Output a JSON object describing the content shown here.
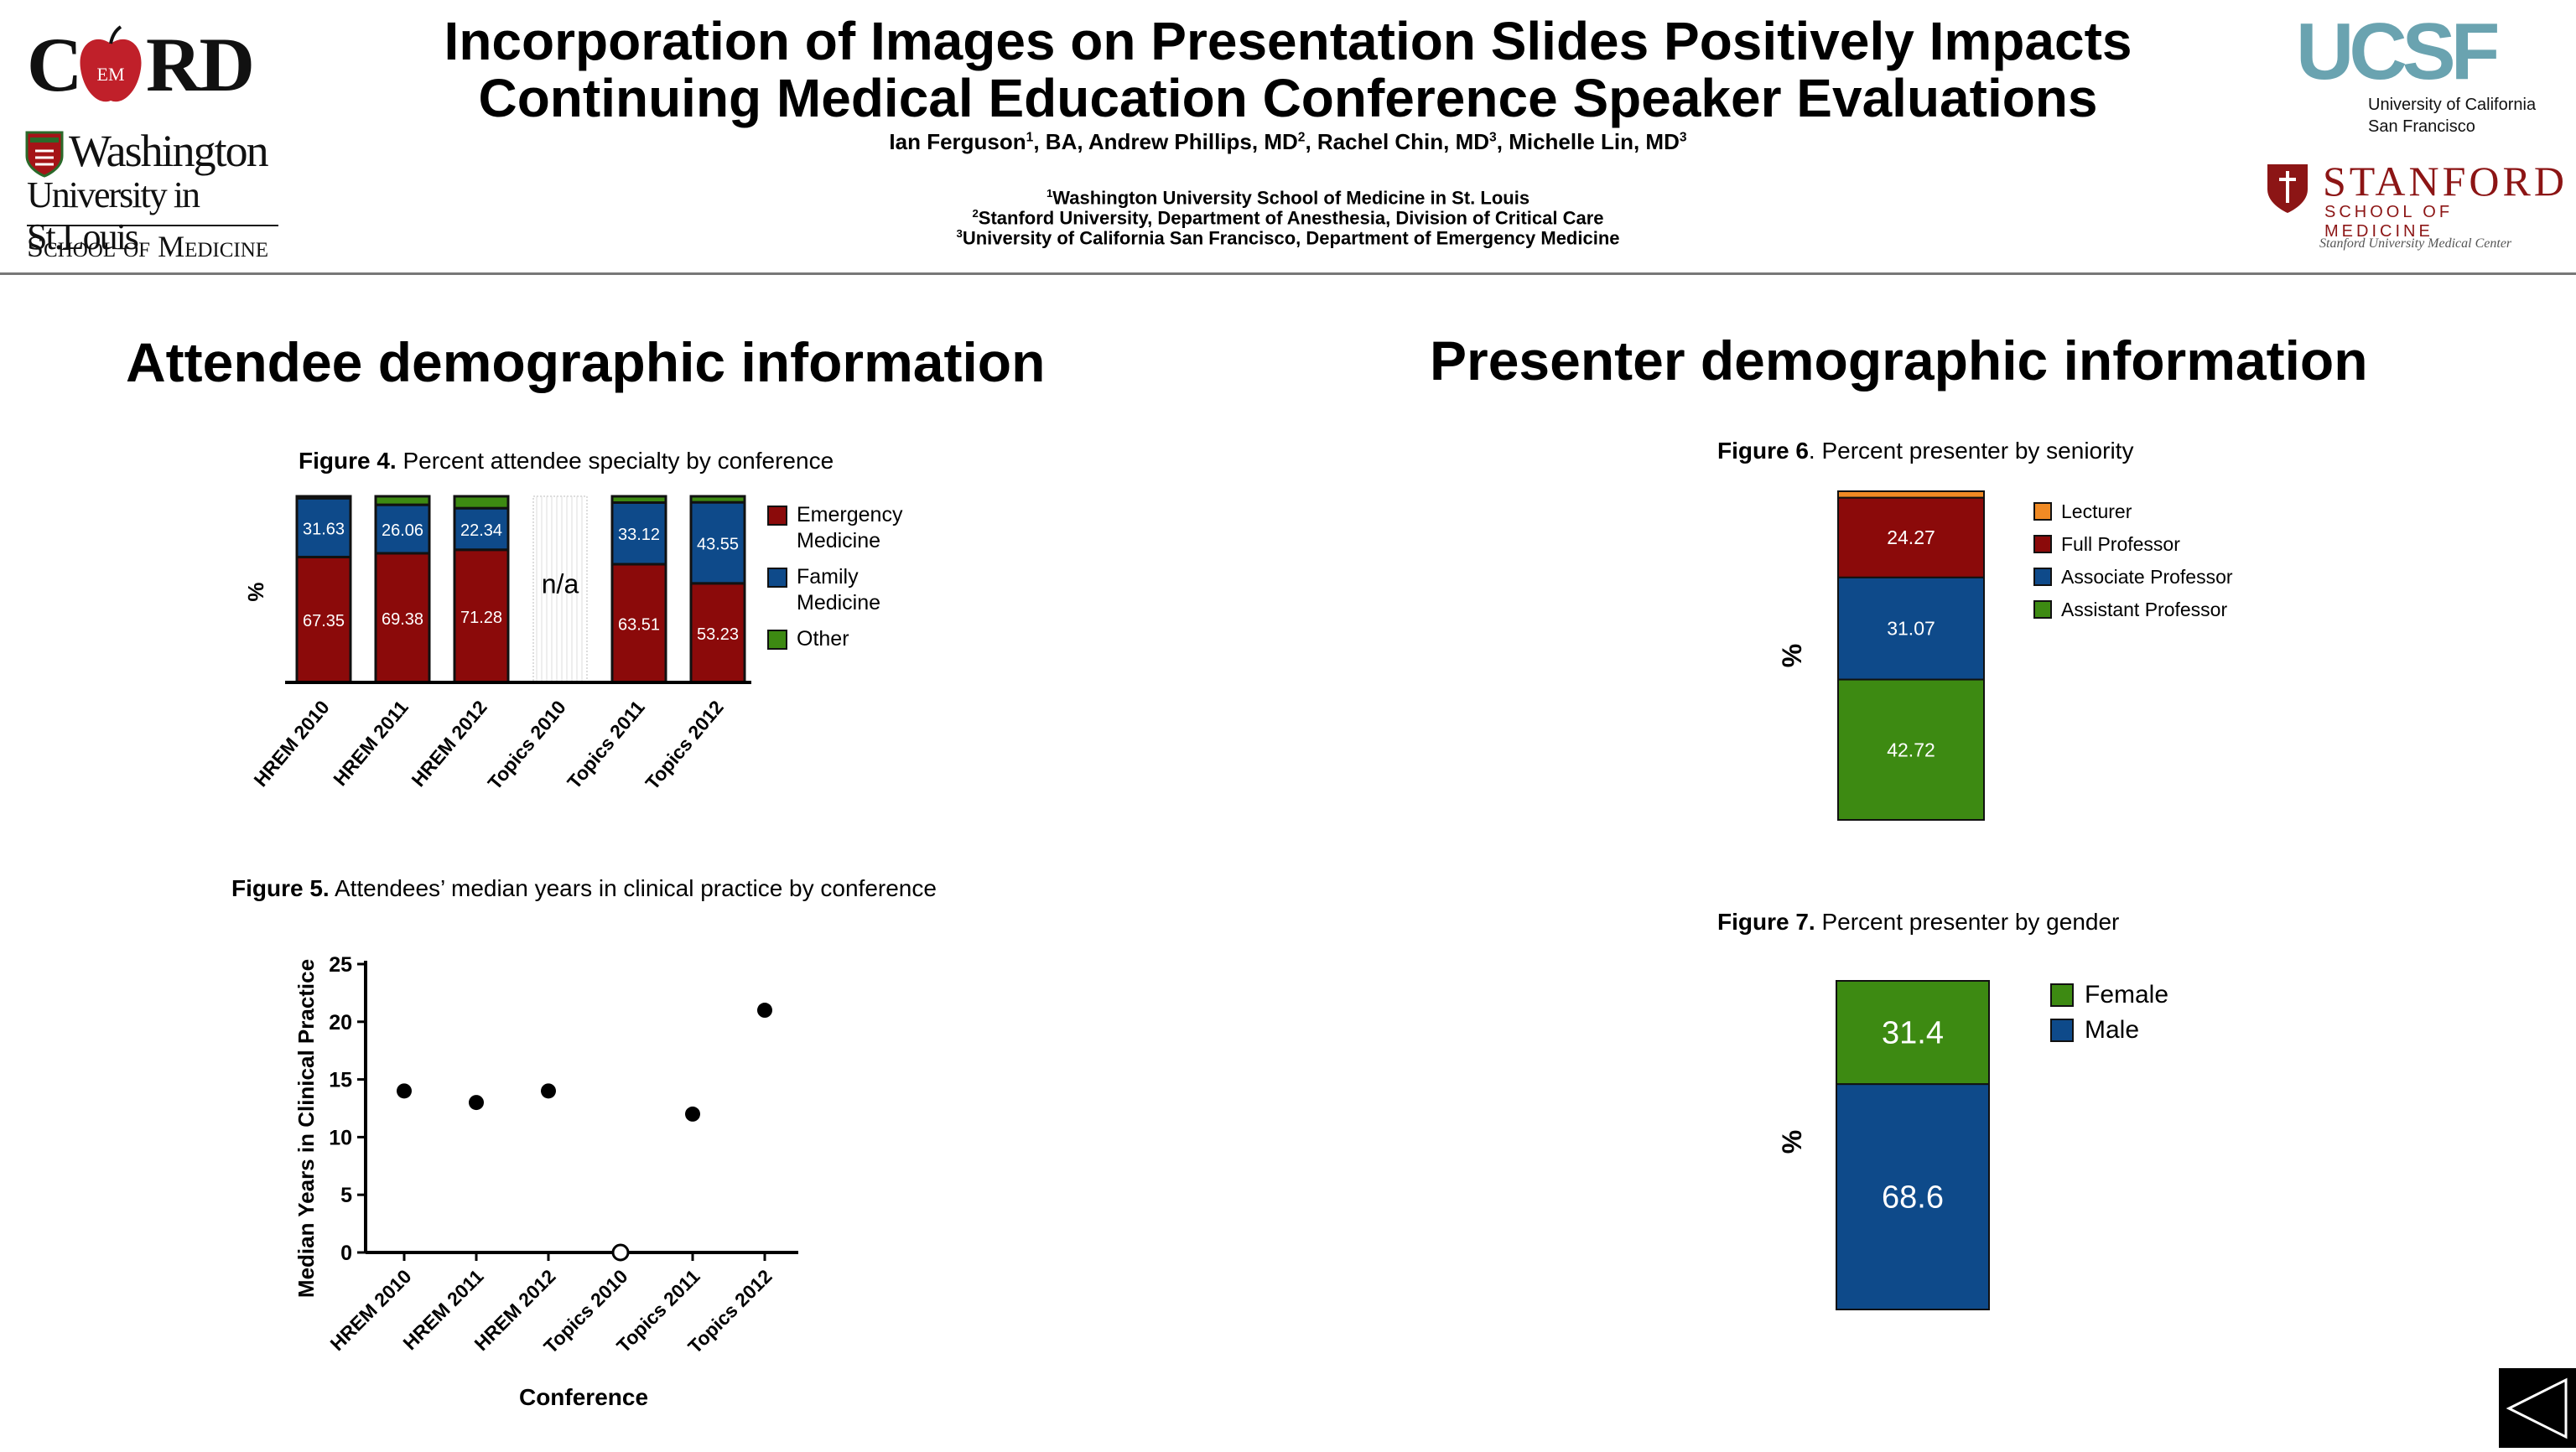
{
  "header": {
    "title_line1": "Incorporation of Images on Presentation Slides Positively Impacts",
    "title_line2": "Continuing Medical Education Conference Speaker Evaluations",
    "authors": [
      {
        "name": "Ian Ferguson",
        "sup": "1",
        "suffix": ", BA, "
      },
      {
        "name": "Andrew Phillips, MD",
        "sup": "2",
        "suffix": ", "
      },
      {
        "name": "Rachel Chin, MD",
        "sup": "3",
        "suffix": ", "
      },
      {
        "name": "Michelle Lin, MD",
        "sup": "3",
        "suffix": ""
      }
    ],
    "affiliations": [
      {
        "sup": "1",
        "text": "Washington University School of Medicine in St. Louis"
      },
      {
        "sup": "2",
        "text": "Stanford University, Department of Anesthesia, Division of Critical Care"
      },
      {
        "sup": "3",
        "text": "University of California San Francisco, Department of Emergency Medicine"
      }
    ]
  },
  "logos": {
    "cord": {
      "left": "C",
      "right": "RD",
      "badge": "EM",
      "color": "#c0202a"
    },
    "washington": {
      "line1": "Washington",
      "line2": "University in St.Louis",
      "line3": "School of Medicine",
      "color": "#a51417"
    },
    "ucsf": {
      "mark": "UCSF",
      "line1": "University of California",
      "line2": "San Francisco",
      "color": "#6aa3b0"
    },
    "stanford": {
      "name": "STANFORD",
      "sub": "SCHOOL OF MEDICINE",
      "center": "Stanford University Medical Center",
      "color": "#8c1515"
    }
  },
  "sections": {
    "attendee": "Attendee demographic information",
    "presenter": "Presenter demographic information"
  },
  "figures": {
    "fig4": {
      "label": "Figure 4.",
      "caption": " Percent attendee specialty by conference"
    },
    "fig5": {
      "label": "Figure 5.",
      "caption": " Attendees’ median years in clinical practice by conference"
    },
    "fig6": {
      "label": "Figure 6",
      "caption": ". Percent presenter by seniority"
    },
    "fig7": {
      "label": "Figure 7.",
      "caption": " Percent presenter by gender"
    }
  },
  "colors": {
    "em": "#8b0a0a",
    "fm": "#0e4a8a",
    "other": "#3d8a12",
    "lecturer": "#f08a24",
    "full": "#8b0a0a",
    "associate": "#0e4a8a",
    "assistant": "#3d8a12"
  },
  "chart_data": [
    {
      "id": "fig4",
      "type": "bar",
      "stacked": true,
      "title": "",
      "ylabel": "%",
      "xlabel": "",
      "ylim": [
        0,
        100
      ],
      "categories": [
        "HREM 2010",
        "HREM 2011",
        "HREM 2012",
        "Topics 2010",
        "Topics 2011",
        "Topics 2012"
      ],
      "series": [
        {
          "name": "Emergency Medicine",
          "values": [
            67.35,
            69.38,
            71.28,
            null,
            63.51,
            53.23
          ]
        },
        {
          "name": "Family Medicine",
          "values": [
            31.63,
            26.06,
            22.34,
            null,
            33.12,
            43.55
          ]
        },
        {
          "name": "Other",
          "values": [
            1.02,
            4.56,
            6.38,
            null,
            3.37,
            3.22
          ]
        }
      ],
      "missing_label": "n/a",
      "legend": [
        "Emergency",
        "Medicine",
        "Family",
        "Medicine",
        "Other"
      ],
      "legend_position": "right"
    },
    {
      "id": "fig5",
      "type": "scatter",
      "title": "",
      "xlabel": "Conference",
      "ylabel": "Median Years in Clinical Practice",
      "ylim": [
        0,
        25
      ],
      "yticks": [
        "0",
        "5",
        "10",
        "15",
        "20",
        "25"
      ],
      "categories": [
        "HREM 2010",
        "HREM 2011",
        "HREM 2012",
        "Topics 2010",
        "Topics 2011",
        "Topics 2012"
      ],
      "values": [
        14,
        13,
        14,
        0,
        12,
        21
      ],
      "open_marker_index": 3
    },
    {
      "id": "fig6",
      "type": "bar",
      "stacked": true,
      "title": "",
      "ylabel": "%",
      "ylim": [
        0,
        100
      ],
      "series": [
        {
          "name": "Assistant Professor",
          "value": 42.72
        },
        {
          "name": "Associate Professor",
          "value": 31.07
        },
        {
          "name": "Full Professor",
          "value": 24.27
        },
        {
          "name": "Lecturer",
          "value": 1.94
        }
      ],
      "data_labels": [
        "42.72",
        "31.07",
        "24.27"
      ],
      "legend": [
        "Lecturer",
        "Full Professor",
        "Associate Professor",
        "Assistant Professor"
      ],
      "legend_position": "right"
    },
    {
      "id": "fig7",
      "type": "bar",
      "stacked": true,
      "title": "",
      "ylabel": "%",
      "ylim": [
        0,
        100
      ],
      "series": [
        {
          "name": "Male",
          "value": 68.6
        },
        {
          "name": "Female",
          "value": 31.4
        }
      ],
      "data_labels": [
        "68.6",
        "31.4"
      ],
      "legend": [
        "Female",
        "Male"
      ],
      "legend_position": "right"
    }
  ]
}
